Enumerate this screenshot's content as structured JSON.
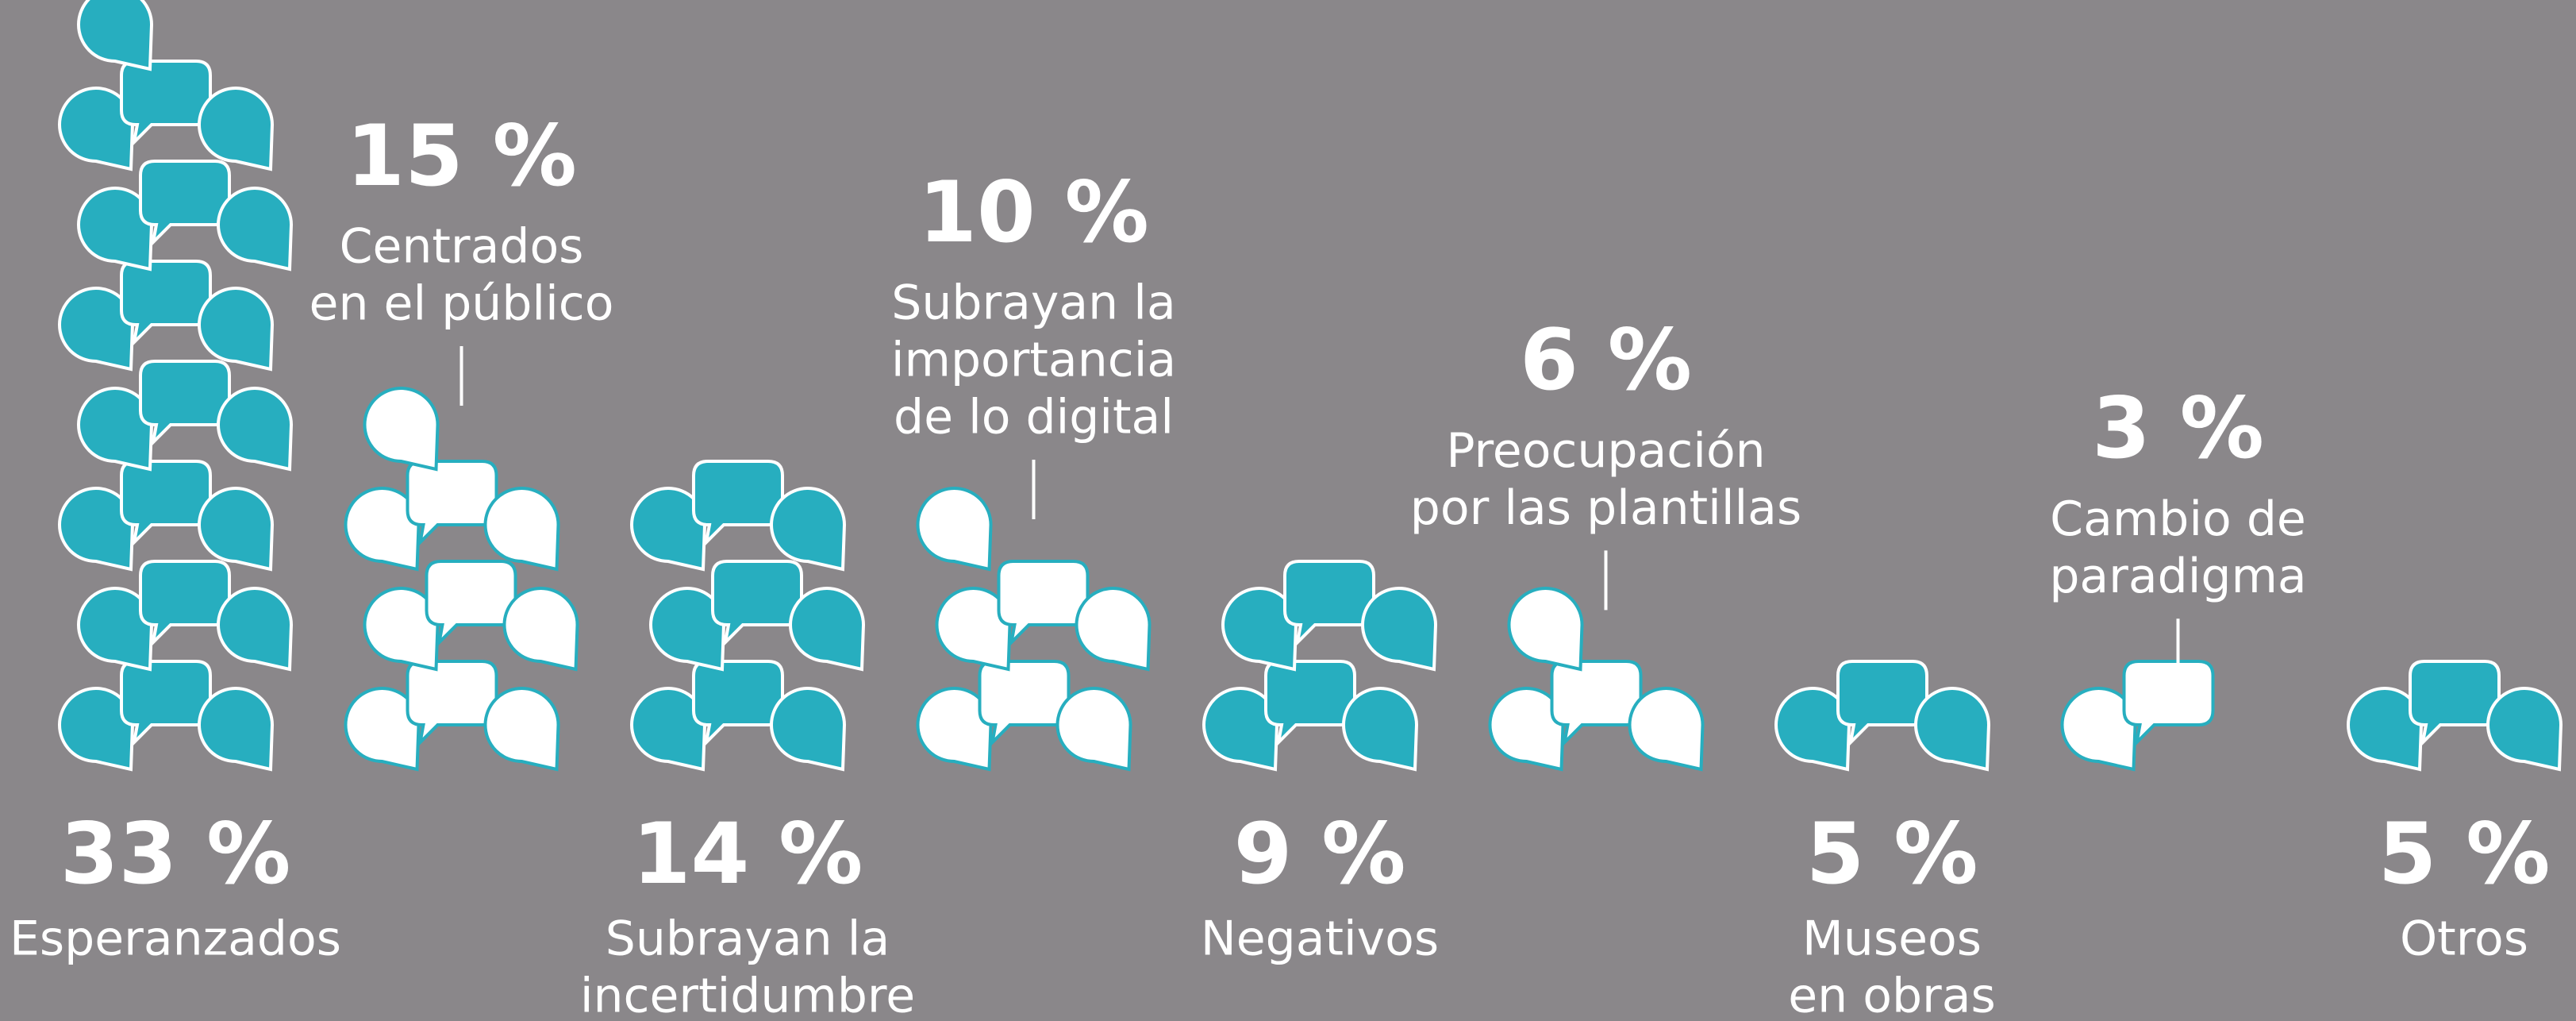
{
  "chart_data": {
    "type": "pictogram",
    "categories": [
      [
        "Esperanzados"
      ],
      [
        "Centrados",
        "en el público"
      ],
      [
        "Subrayan la",
        "incertidumbre"
      ],
      [
        "Subrayan la",
        "importancia",
        "de lo digital"
      ],
      [
        "Negativos"
      ],
      [
        "Preocupación",
        "por las plantillas"
      ],
      [
        "Museos",
        "en obras"
      ],
      [
        "Cambio de",
        "paradigma"
      ],
      [
        "Otros"
      ]
    ],
    "values": [
      33,
      15,
      14,
      10,
      9,
      6,
      5,
      3,
      5
    ],
    "value_labels": [
      "33 %",
      "15 %",
      "14 %",
      "10 %",
      "9 %",
      "6 %",
      "5 %",
      "3 %",
      "5 %"
    ],
    "colors": [
      "#27aebf",
      "#ffffff",
      "#27aebf",
      "#ffffff",
      "#27aebf",
      "#ffffff",
      "#27aebf",
      "#ffffff",
      "#27aebf"
    ]
  }
}
